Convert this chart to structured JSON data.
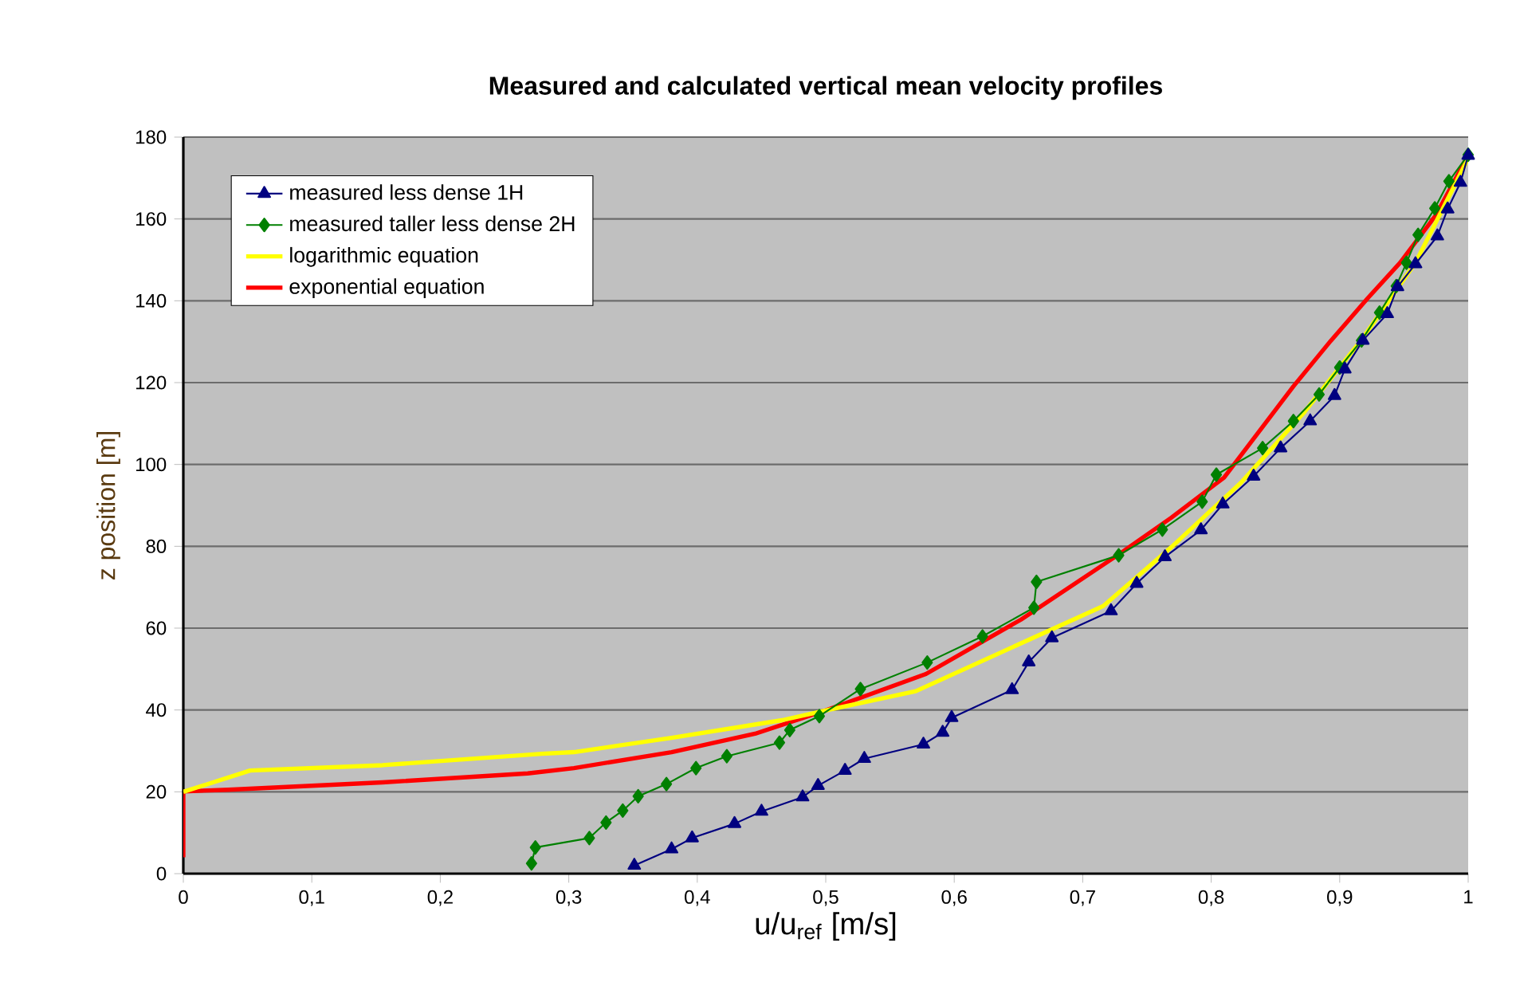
{
  "chart_data": {
    "type": "line",
    "title": "Measured and calculated vertical mean velocity profiles",
    "xlabel": "u/u$_{ref}$ [m/s]",
    "ylabel": "z position [m]",
    "xlim": [
      0,
      1
    ],
    "ylim": [
      0,
      180
    ],
    "xticks": [
      0,
      {
        "value": 0.1,
        "label": "0,1"
      },
      {
        "value": 0.2,
        "label": "0,2"
      },
      {
        "value": 0.3,
        "label": "0,3"
      },
      {
        "value": 0.4,
        "label": "0,4"
      },
      {
        "value": 0.5,
        "label": "0,5"
      },
      {
        "value": 0.6,
        "label": "0,6"
      },
      {
        "value": 0.7,
        "label": "0,7"
      },
      {
        "value": 0.8,
        "label": "0,8"
      },
      {
        "value": 0.9,
        "label": "0,9"
      },
      1
    ],
    "yticks": [
      0,
      20,
      40,
      60,
      80,
      100,
      120,
      140,
      160,
      180
    ],
    "grid": "y",
    "legend": "top left",
    "line_style": "solid",
    "series": [
      {
        "name": "measured less dense 1H",
        "color": "#000080",
        "marker": "triangle",
        "x": [
          0.351,
          0.38,
          0.396,
          0.429,
          0.45,
          0.482,
          0.494,
          0.515,
          0.53,
          0.576,
          0.591,
          0.598,
          0.645,
          0.658,
          0.676,
          0.722,
          0.742,
          0.764,
          0.792,
          0.809,
          0.833,
          0.854,
          0.877,
          0.896,
          0.904,
          0.918,
          0.937,
          0.945,
          0.959,
          0.976,
          0.984,
          0.994,
          1.0
        ],
        "values": [
          2,
          6,
          8.7,
          12.2,
          15.2,
          18.7,
          21.5,
          25.2,
          28.1,
          31.6,
          34.5,
          38.1,
          44.9,
          51.7,
          57.6,
          64.2,
          70.9,
          77.4,
          84,
          90.3,
          97.1,
          104,
          110.6,
          116.8,
          123.3,
          130.3,
          136.8,
          143.4,
          149,
          155.8,
          162.4,
          168.9,
          175.5
        ]
      },
      {
        "name": "measured taller less dense 2H",
        "color": "#008000",
        "marker": "diamond",
        "x": [
          0.271,
          0.274,
          0.316,
          0.329,
          0.342,
          0.354,
          0.376,
          0.399,
          0.423,
          0.464,
          0.472,
          0.495,
          0.527,
          0.579,
          0.622,
          0.662,
          0.664,
          0.728,
          0.762,
          0.793,
          0.804,
          0.84,
          0.864,
          0.884,
          0.9,
          0.917,
          0.931,
          0.944,
          0.952,
          0.961,
          0.974,
          0.985,
          1.0
        ],
        "values": [
          2.5,
          6.4,
          8.7,
          12.5,
          15.4,
          18.9,
          21.9,
          25.8,
          28.7,
          32,
          35.1,
          38.5,
          45.1,
          51.6,
          58,
          65,
          71.3,
          77.8,
          84.1,
          90.9,
          97.5,
          104,
          110.6,
          117.1,
          123.7,
          130.3,
          137.1,
          143.6,
          149.3,
          156.1,
          162.6,
          169.2,
          175.7
        ]
      },
      {
        "name": "logarithmic equation",
        "color": "#ffff00",
        "marker": "none",
        "x": [
          0,
          0.052,
          0.155,
          0.279,
          0.304,
          0.38,
          0.466,
          0.499,
          0.57,
          0.652,
          0.716,
          0.769,
          0.823,
          0.872,
          0.918,
          0.959,
          0.999
        ],
        "values": [
          20,
          25.2,
          26.5,
          29.3,
          29.7,
          33.2,
          37.5,
          39.8,
          44.6,
          56.3,
          65.4,
          79.8,
          95.5,
          112.6,
          130.9,
          149.3,
          174.2
        ]
      },
      {
        "name": "exponential equation",
        "color": "#ff0000",
        "marker": "none",
        "x": [
          0,
          0,
          0.035,
          0.155,
          0.268,
          0.304,
          0.38,
          0.445,
          0.499,
          0.578,
          0.652,
          0.727,
          0.769,
          0.81,
          0.864,
          0.893,
          0.922,
          0.947,
          0.975,
          0.998
        ],
        "values": [
          4,
          20.1,
          20.5,
          22.3,
          24.5,
          25.8,
          29.7,
          34.2,
          39.8,
          48.8,
          62.1,
          77.8,
          87,
          96.8,
          119.1,
          130.2,
          140.7,
          149.3,
          161,
          174.4
        ]
      }
    ]
  }
}
